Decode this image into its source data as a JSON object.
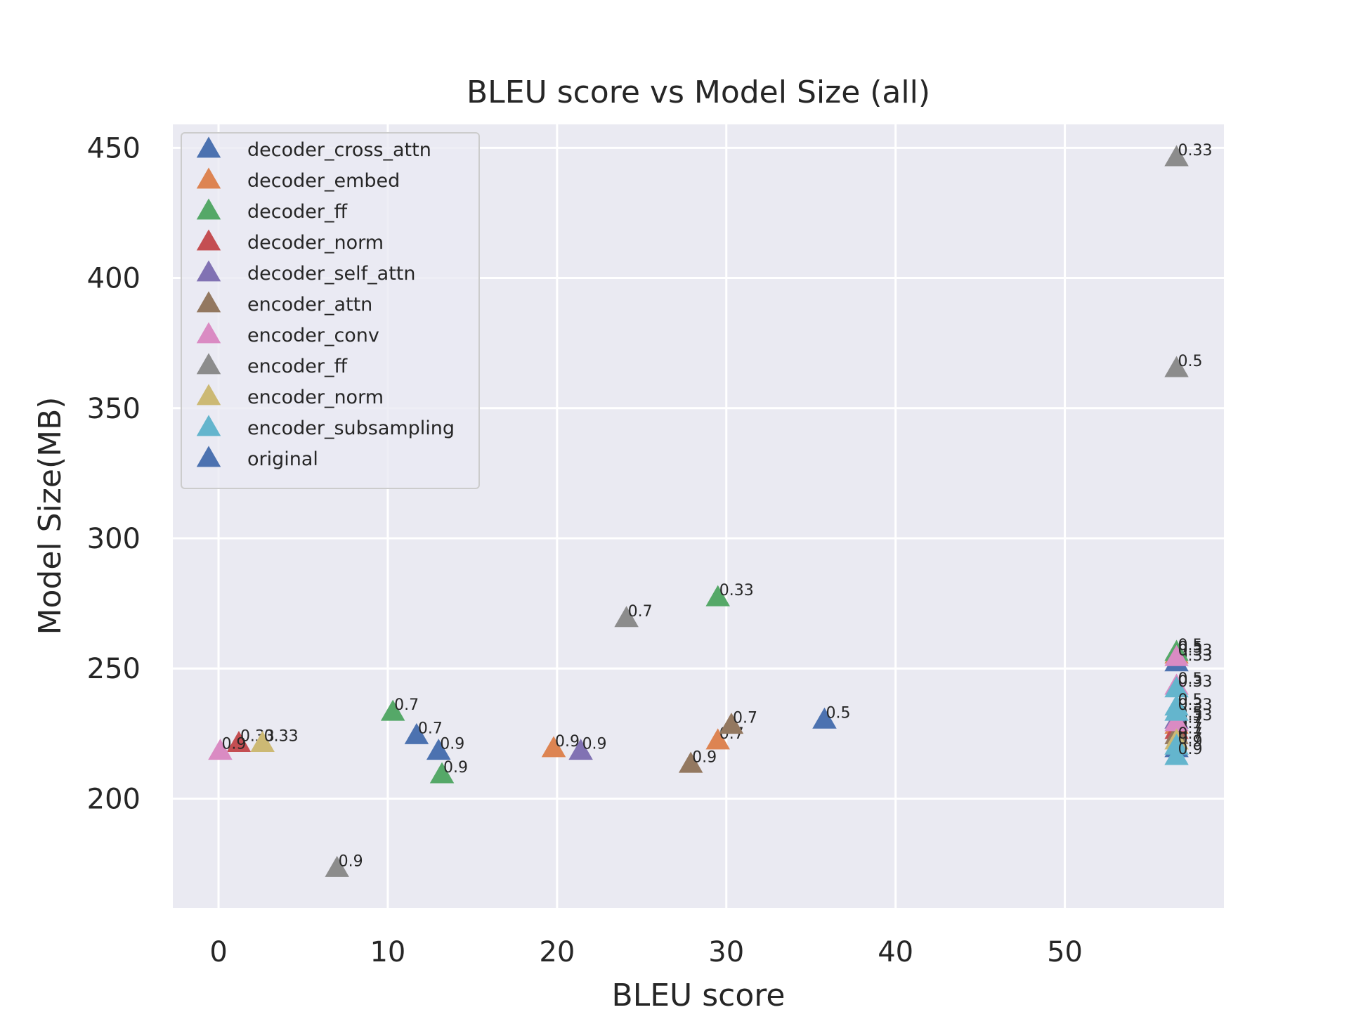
{
  "chart_data": {
    "type": "scatter",
    "title": "BLEU score vs Model Size (all)",
    "xlabel": "BLEU score",
    "ylabel": "Model Size(MB)",
    "xlim": [
      -2.7,
      59.4
    ],
    "ylim": [
      158,
      459
    ],
    "xticks": [
      "0",
      "10",
      "20",
      "30",
      "40",
      "50"
    ],
    "xtick_values": [
      0,
      10,
      20,
      30,
      40,
      50
    ],
    "yticks": [
      "200",
      "250",
      "300",
      "350",
      "400",
      "450"
    ],
    "ytick_values": [
      200,
      250,
      300,
      350,
      400,
      450
    ],
    "grid": true,
    "legend_position": "top-left",
    "marker": "triangle-up",
    "series": [
      {
        "name": "decoder_cross_attn",
        "color": "#4c72b0",
        "points": [
          {
            "x": 35.8,
            "y": 230,
            "label": "0.5"
          },
          {
            "x": 11.7,
            "y": 224,
            "label": "0.7"
          },
          {
            "x": 13.0,
            "y": 218,
            "label": "0.9"
          },
          {
            "x": 56.6,
            "y": 252,
            "label": "0.33"
          },
          {
            "x": 56.6,
            "y": 219,
            "label": "0.9"
          }
        ]
      },
      {
        "name": "decoder_embed",
        "color": "#dd8452",
        "points": [
          {
            "x": 29.5,
            "y": 222,
            "label": "0.7"
          },
          {
            "x": 19.8,
            "y": 219,
            "label": "0.9"
          },
          {
            "x": 56.6,
            "y": 255,
            "label": "0.5"
          },
          {
            "x": 56.6,
            "y": 228,
            "label": "0.7"
          }
        ]
      },
      {
        "name": "decoder_ff",
        "color": "#55a868",
        "points": [
          {
            "x": 29.5,
            "y": 277,
            "label": "0.33"
          },
          {
            "x": 10.3,
            "y": 233,
            "label": "0.7"
          },
          {
            "x": 13.2,
            "y": 209,
            "label": "0.9"
          },
          {
            "x": 56.6,
            "y": 256,
            "label": "0.5"
          }
        ]
      },
      {
        "name": "decoder_norm",
        "color": "#c44e52",
        "points": [
          {
            "x": 1.2,
            "y": 221,
            "label": "0.33"
          },
          {
            "x": 56.6,
            "y": 226,
            "label": "0.7"
          }
        ]
      },
      {
        "name": "decoder_self_attn",
        "color": "#8172b3",
        "points": [
          {
            "x": 21.4,
            "y": 218,
            "label": "0.9"
          },
          {
            "x": 56.6,
            "y": 230,
            "label": "0.5"
          }
        ]
      },
      {
        "name": "encoder_attn",
        "color": "#937860",
        "points": [
          {
            "x": 30.3,
            "y": 228,
            "label": "0.7"
          },
          {
            "x": 27.9,
            "y": 213,
            "label": "0.9"
          },
          {
            "x": 56.6,
            "y": 224,
            "label": "0.7"
          }
        ]
      },
      {
        "name": "encoder_conv",
        "color": "#da8bc3",
        "points": [
          {
            "x": 0.1,
            "y": 218,
            "label": "0.9"
          },
          {
            "x": 56.6,
            "y": 254,
            "label": "0.33"
          },
          {
            "x": 56.6,
            "y": 243,
            "label": "0.5"
          },
          {
            "x": 56.6,
            "y": 229,
            "label": "0.33"
          }
        ]
      },
      {
        "name": "encoder_ff",
        "color": "#8c8c8c",
        "points": [
          {
            "x": 56.6,
            "y": 446,
            "label": "0.33"
          },
          {
            "x": 56.6,
            "y": 365,
            "label": "0.5"
          },
          {
            "x": 24.1,
            "y": 269,
            "label": "0.7"
          },
          {
            "x": 7.0,
            "y": 173,
            "label": "0.9"
          }
        ]
      },
      {
        "name": "encoder_norm",
        "color": "#ccb974",
        "points": [
          {
            "x": 2.6,
            "y": 221,
            "label": "0.33"
          },
          {
            "x": 56.6,
            "y": 222,
            "label": "0.7"
          }
        ]
      },
      {
        "name": "encoder_subsampling",
        "color": "#64b5cd",
        "points": [
          {
            "x": 56.6,
            "y": 242,
            "label": "0.33"
          },
          {
            "x": 56.6,
            "y": 235,
            "label": "0.5"
          },
          {
            "x": 56.6,
            "y": 233,
            "label": "0.33"
          },
          {
            "x": 56.6,
            "y": 220,
            "label": "0.7"
          },
          {
            "x": 56.6,
            "y": 216,
            "label": "0.9"
          }
        ]
      },
      {
        "name": "original",
        "color": "#4c72b0",
        "points": []
      }
    ]
  }
}
